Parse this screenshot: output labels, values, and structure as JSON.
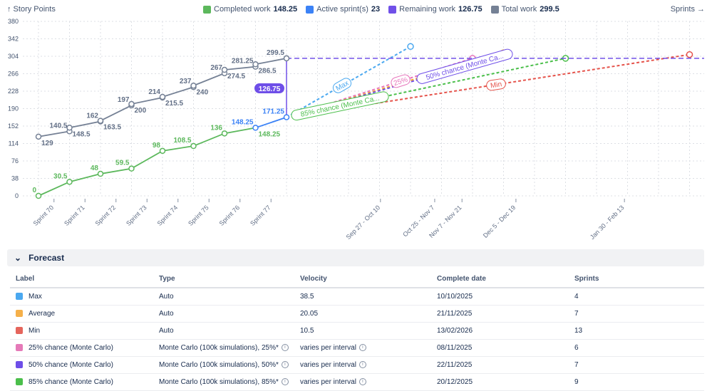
{
  "header": {
    "y_axis_label": "↑ Story Points",
    "x_axis_label": "Sprints →",
    "legend": [
      {
        "label": "Completed work",
        "value": "148.25",
        "color": "#5cb85c"
      },
      {
        "label": "Active sprint(s)",
        "value": "23",
        "color": "#3b82f6"
      },
      {
        "label": "Remaining work",
        "value": "126.75",
        "color": "#7050e8"
      },
      {
        "label": "Total work",
        "value": "299.5",
        "color": "#758195"
      }
    ]
  },
  "chart_data": {
    "type": "line",
    "ylim": [
      0,
      380
    ],
    "yticks": [
      0,
      38,
      76,
      114,
      152,
      190,
      228,
      266,
      304,
      342,
      380
    ],
    "grid": true,
    "sprints": [
      "Sprint 70",
      "Sprint 71",
      "Sprint 72",
      "Sprint 73",
      "Sprint 74",
      "Sprint 75",
      "Sprint 76",
      "Sprint 77"
    ],
    "forecast_ticks": [
      {
        "label": "Sep 27 - Oct 10",
        "interval": 11.03
      },
      {
        "label": "Oct 25 - Nov 7",
        "interval": 12.78
      },
      {
        "label": "Nov 7 - Nov 21",
        "interval": 13.66
      },
      {
        "label": "Dec 5 - Dec 19",
        "interval": 15.4
      },
      {
        "label": "Jan 30 - Feb 13",
        "interval": 18.9
      }
    ],
    "total_work": [
      [
        129
      ],
      [
        140.5,
        148.5
      ],
      [
        162,
        163.5
      ],
      [
        197,
        200
      ],
      [
        214,
        215.5
      ],
      [
        237,
        240
      ],
      [
        267,
        274.5
      ],
      [
        281.25,
        286.5
      ],
      [
        299.5
      ]
    ],
    "total_labels_above": [
      "",
      "140.5",
      "162",
      "197",
      "214",
      "237",
      "267",
      "281.25",
      "299.5"
    ],
    "total_labels_below": [
      "129",
      "148.5",
      "163.5",
      "200",
      "215.5",
      "240",
      "274.5",
      "286.5",
      ""
    ],
    "completed_work": [
      0,
      30.5,
      48,
      59.5,
      98,
      108.5,
      136,
      148.25
    ],
    "completed_labels": [
      "0",
      "30.5",
      "48",
      "59.5",
      "98",
      "108.5",
      "136",
      "148.25"
    ],
    "active": {
      "start": 148.25,
      "end": 171.25,
      "start_label": "148.25",
      "end_label": "171.25"
    },
    "remaining": {
      "value": 126.75,
      "label": "126.75",
      "target": 299.5
    },
    "forecasts": [
      {
        "name": "Max",
        "pill": "Max",
        "color": "#4aa8f0",
        "end_interval": 12,
        "end_value": 325.25
      },
      {
        "name": "25%",
        "pill": "25%",
        "color": "#e774bb",
        "end_interval": 14,
        "end_value": 299.5
      },
      {
        "name": "Average",
        "pill": "",
        "color": "#f5a623",
        "end_interval": 15,
        "end_value": 311.6
      },
      {
        "name": "50%",
        "pill": "50% chance (Monte Ca...",
        "color": "#6e4ee8",
        "end_interval": 15,
        "end_value": 306
      },
      {
        "name": "85%",
        "pill": "85% chance (Monte Ca...",
        "color": "#4bbf4b",
        "end_interval": 17,
        "end_value": 299.5
      },
      {
        "name": "Min",
        "pill": "Min",
        "color": "#e5534b",
        "end_interval": 21,
        "end_value": 307.75
      }
    ]
  },
  "forecast": {
    "title": "Forecast",
    "columns": [
      "Label",
      "Type",
      "Velocity",
      "Complete date",
      "Sprints"
    ],
    "rows": [
      {
        "label": "Max",
        "color": "#4aa8f0",
        "type": "Auto",
        "velocity": "38.5",
        "date": "10/10/2025",
        "sprints": "4"
      },
      {
        "label": "Average",
        "color": "#f5b04a",
        "type": "Auto",
        "velocity": "20.05",
        "date": "21/11/2025",
        "sprints": "7"
      },
      {
        "label": "Min",
        "color": "#e5655c",
        "type": "Auto",
        "velocity": "10.5",
        "date": "13/02/2026",
        "sprints": "13"
      },
      {
        "label": "25% chance (Monte Carlo)",
        "color": "#e57ab8",
        "type": "Monte Carlo (100k simulations), 25%*",
        "velocity": "varies per interval",
        "date": "08/11/2025",
        "sprints": "6",
        "info": true
      },
      {
        "label": "50% chance (Monte Carlo)",
        "color": "#6e4ee8",
        "type": "Monte Carlo (100k simulations), 50%*",
        "velocity": "varies per interval",
        "date": "22/11/2025",
        "sprints": "7",
        "info": true
      },
      {
        "label": "85% chance (Monte Carlo)",
        "color": "#4bbf4b",
        "type": "Monte Carlo (100k simulations), 85%*",
        "velocity": "varies per interval",
        "date": "20/12/2025",
        "sprints": "9",
        "info": true
      }
    ]
  }
}
